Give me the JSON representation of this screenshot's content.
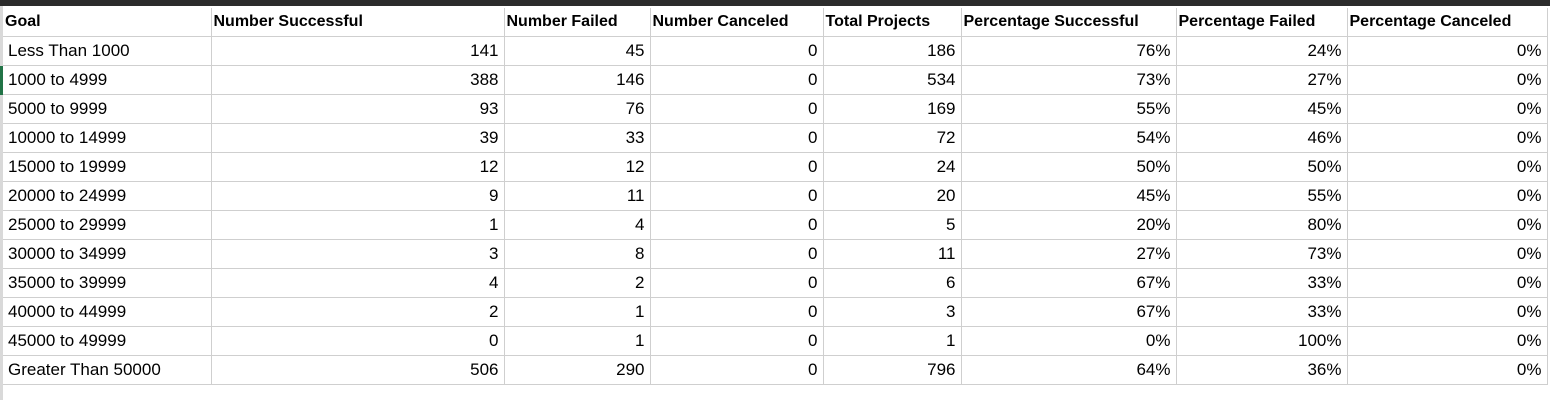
{
  "sheet": {
    "headers": [
      "Goal",
      "Number Successful",
      "Number Failed",
      "Number Canceled",
      "Total Projects",
      "Percentage Successful",
      "Percentage Failed",
      "Percentage Canceled"
    ],
    "rows": [
      [
        "Less Than 1000",
        "141",
        "45",
        "0",
        "186",
        "76%",
        "24%",
        "0%"
      ],
      [
        "1000 to 4999",
        "388",
        "146",
        "0",
        "534",
        "73%",
        "27%",
        "0%"
      ],
      [
        "5000 to 9999",
        "93",
        "76",
        "0",
        "169",
        "55%",
        "45%",
        "0%"
      ],
      [
        "10000 to 14999",
        "39",
        "33",
        "0",
        "72",
        "54%",
        "46%",
        "0%"
      ],
      [
        "15000 to 19999",
        "12",
        "12",
        "0",
        "24",
        "50%",
        "50%",
        "0%"
      ],
      [
        "20000 to 24999",
        "9",
        "11",
        "0",
        "20",
        "45%",
        "55%",
        "0%"
      ],
      [
        "25000 to 29999",
        "1",
        "4",
        "0",
        "5",
        "20%",
        "80%",
        "0%"
      ],
      [
        "30000 to 34999",
        "3",
        "8",
        "0",
        "11",
        "27%",
        "73%",
        "0%"
      ],
      [
        "35000 to 39999",
        "4",
        "2",
        "0",
        "6",
        "67%",
        "33%",
        "0%"
      ],
      [
        "40000 to 44999",
        "2",
        "1",
        "0",
        "3",
        "67%",
        "33%",
        "0%"
      ],
      [
        "45000 to 49999",
        "0",
        "1",
        "0",
        "1",
        "0%",
        "100%",
        "0%"
      ],
      [
        "Greater Than 50000",
        "506",
        "290",
        "0",
        "796",
        "64%",
        "36%",
        "0%"
      ]
    ]
  },
  "colors": {
    "gridline": "#cfcfcf",
    "top_bar": "#2b2b2b",
    "active_row_marker": "#217346"
  }
}
